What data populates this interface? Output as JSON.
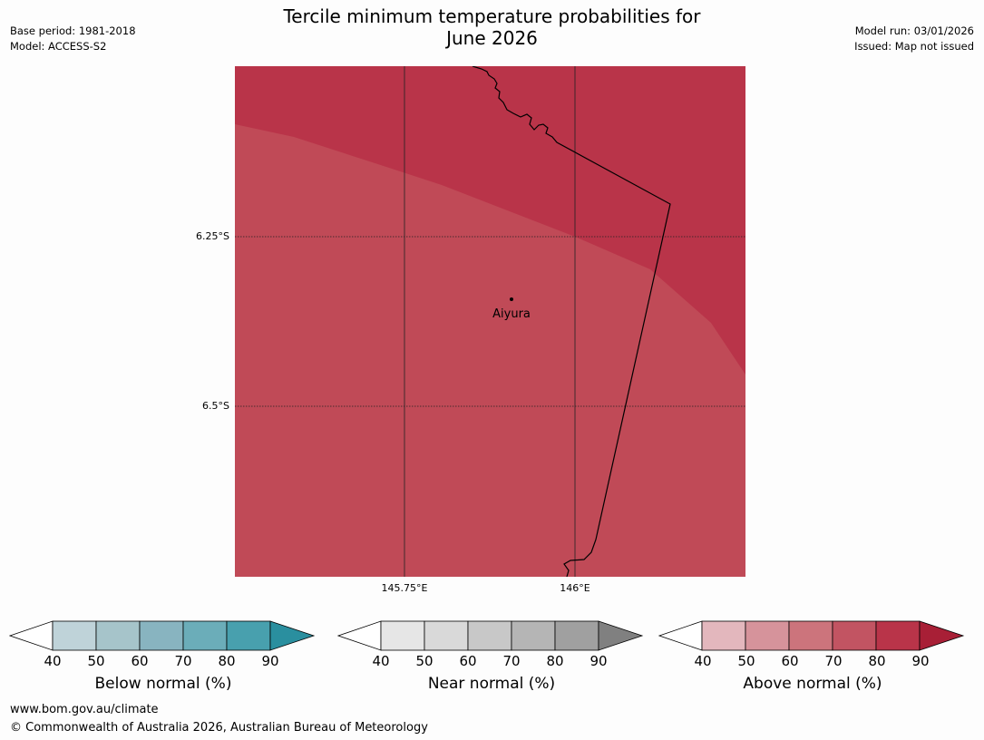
{
  "title": {
    "line1": "Tercile minimum temperature probabilities for",
    "line2": "June 2026"
  },
  "meta": {
    "base_period": "Base period: 1981-2018",
    "model": "Model: ACCESS-S2",
    "model_run": "Model run: 03/01/2026",
    "issued": "Issued: Map not issued"
  },
  "map": {
    "fill_colors": {
      "above_80_90": "#b93449",
      "above_70_80": "#c04a57"
    },
    "lat_labels": [
      "6.25°S",
      "6.5°S"
    ],
    "lon_labels": [
      "145.75°E",
      "146°E"
    ],
    "place": {
      "name": "Aiyura"
    }
  },
  "colorbars": [
    {
      "label": "Below normal (%)",
      "ticks": [
        "40",
        "50",
        "60",
        "70",
        "80",
        "90"
      ],
      "colors": [
        "#bfd3d9",
        "#a6c4ca",
        "#88b4c0",
        "#6badb9",
        "#48a0ae",
        "#2a8f9f"
      ]
    },
    {
      "label": "Near normal (%)",
      "ticks": [
        "40",
        "50",
        "60",
        "70",
        "80",
        "90"
      ],
      "colors": [
        "#e6e6e6",
        "#d9d9d9",
        "#c8c8c8",
        "#b5b5b5",
        "#a0a0a0",
        "#808080"
      ]
    },
    {
      "label": "Above normal (%)",
      "ticks": [
        "40",
        "50",
        "60",
        "70",
        "80",
        "90"
      ],
      "colors": [
        "#e3b7bd",
        "#d6939b",
        "#cc747c",
        "#c25462",
        "#b93449",
        "#a81f36"
      ]
    }
  ],
  "footer": {
    "url": "www.bom.gov.au/climate",
    "copyright": "© Commonwealth of Australia 2026, Australian Bureau of Meteorology"
  }
}
